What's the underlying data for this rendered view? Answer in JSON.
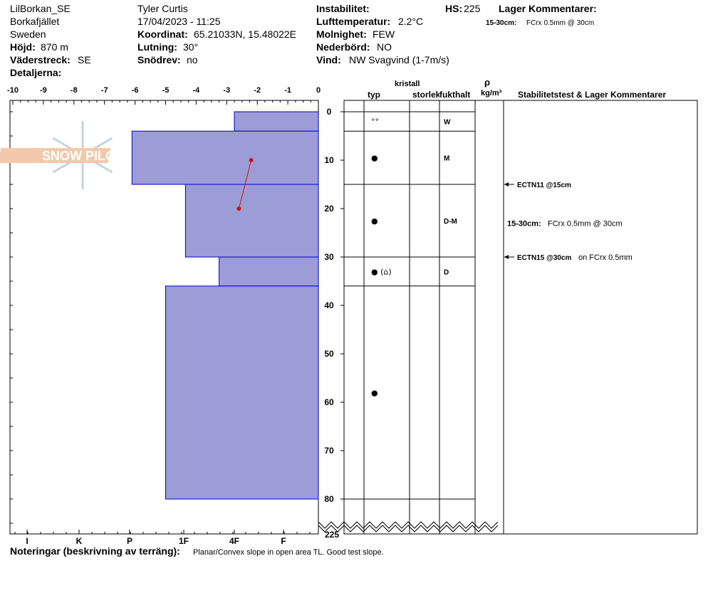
{
  "header": {
    "site": "LilBorkan_SE",
    "area": "Borkafjället",
    "country": "Sweden",
    "elevation_label": "Höjd:",
    "elevation": "870 m",
    "aspect_label": "Väderstreck:",
    "aspect": "SE",
    "details_label": "Detaljerna:",
    "observer": "Tyler Curtis",
    "datetime": "17/04/2023 - 11:25",
    "coord_label": "Koordinat:",
    "coord": "65.21033N, 15.48022E",
    "slope_label": "Lutning:",
    "slope": "30°",
    "drift_label": "Snödrev:",
    "drift": "no",
    "instability_label": "Instabilitet:",
    "air_temp_label": "Lufttemperatur:",
    "air_temp": "2.2°C",
    "sky_label": "Molnighet:",
    "sky": "FEW",
    "precip_label": "Nederbörd:",
    "precip": "NO",
    "wind_label": "Vind:",
    "wind": "NW Svagvind (1-7m/s)",
    "hs_label": "HS:",
    "hs": "225",
    "layer_comments_label": "Lager Kommentarer:",
    "layer_comment_range": "15-30cm:",
    "layer_comment_text": "FCrx 0.5mm @ 30cm"
  },
  "logo": {
    "text": "SNOW PILOT"
  },
  "columns": {
    "crystal": "kristall",
    "type": "typ",
    "size": "storlek",
    "moisture": "fukthalt",
    "density_symbol": "ρ",
    "density_unit": "kg/m³",
    "stability": "Stabilitetstest & Lager Kommentarer"
  },
  "notes": {
    "label": "Noteringar (beskrivning av terräng):",
    "text": "Planar/Convex slope in open area TL. Good test slope."
  },
  "colors": {
    "layer_fill": "#9c9cd6",
    "layer_stroke": "#0000cc",
    "temp_line": "#cc1111"
  },
  "chart_data": {
    "type": "bar",
    "title": "",
    "x_axis_top": {
      "label": "",
      "ticks": [
        "-10",
        "-9",
        "-8",
        "-7",
        "-6",
        "-5",
        "-4",
        "-3",
        "-2",
        "-1",
        "0"
      ],
      "range": [
        -10,
        0
      ]
    },
    "x_axis_bottom": {
      "label": "",
      "ticks": [
        "I",
        "K",
        "P",
        "1F",
        "4F",
        "F"
      ]
    },
    "y_axis": {
      "label": "",
      "ticks": [
        "0",
        "10",
        "20",
        "30",
        "40",
        "50",
        "60",
        "70",
        "80"
      ],
      "range": [
        0,
        80
      ],
      "break_label": "225"
    },
    "layers": [
      {
        "top": 0,
        "bottom": 4,
        "hardness": "F+",
        "hardness_value": 2.75,
        "grain": "rounded",
        "moisture": "W"
      },
      {
        "top": 4,
        "bottom": 15,
        "hardness": "P-",
        "hardness_value": 6.1,
        "grain": "melt-freeze",
        "moisture": "M"
      },
      {
        "top": 15,
        "bottom": 30,
        "hardness": "1F-",
        "hardness_value": 4.35,
        "grain": "rounded",
        "moisture": "D-M"
      },
      {
        "top": 30,
        "bottom": 36,
        "hardness": "4F+",
        "hardness_value": 3.25,
        "grain": "rounded-faceted",
        "moisture": "D"
      },
      {
        "top": 36,
        "bottom": 80,
        "hardness": "1F",
        "hardness_value": 5.0,
        "grain": "rounded",
        "moisture": ""
      }
    ],
    "temperature_profile": [
      {
        "depth": 10,
        "temp": -2.2
      },
      {
        "depth": 20,
        "temp": -2.6
      }
    ],
    "grain_marks": [
      {
        "depth": 2,
        "symbol": "°°"
      },
      {
        "depth": 9.5,
        "symbol": "●"
      },
      {
        "depth": 22.5,
        "symbol": "●"
      },
      {
        "depth": 33,
        "symbol": "● (⌂)"
      },
      {
        "depth": 58,
        "symbol": "●"
      }
    ],
    "stability_tests": [
      {
        "depth": 15,
        "label": "ECTN11 @15cm",
        "note": ""
      },
      {
        "depth": 30,
        "label": "ECTN15 @30cm",
        "note": "on FCrx 0.5mm"
      }
    ],
    "layer_comments": [
      {
        "depth": 23,
        "range": "15-30cm:",
        "text": "FCrx 0.5mm @ 30cm"
      }
    ]
  }
}
